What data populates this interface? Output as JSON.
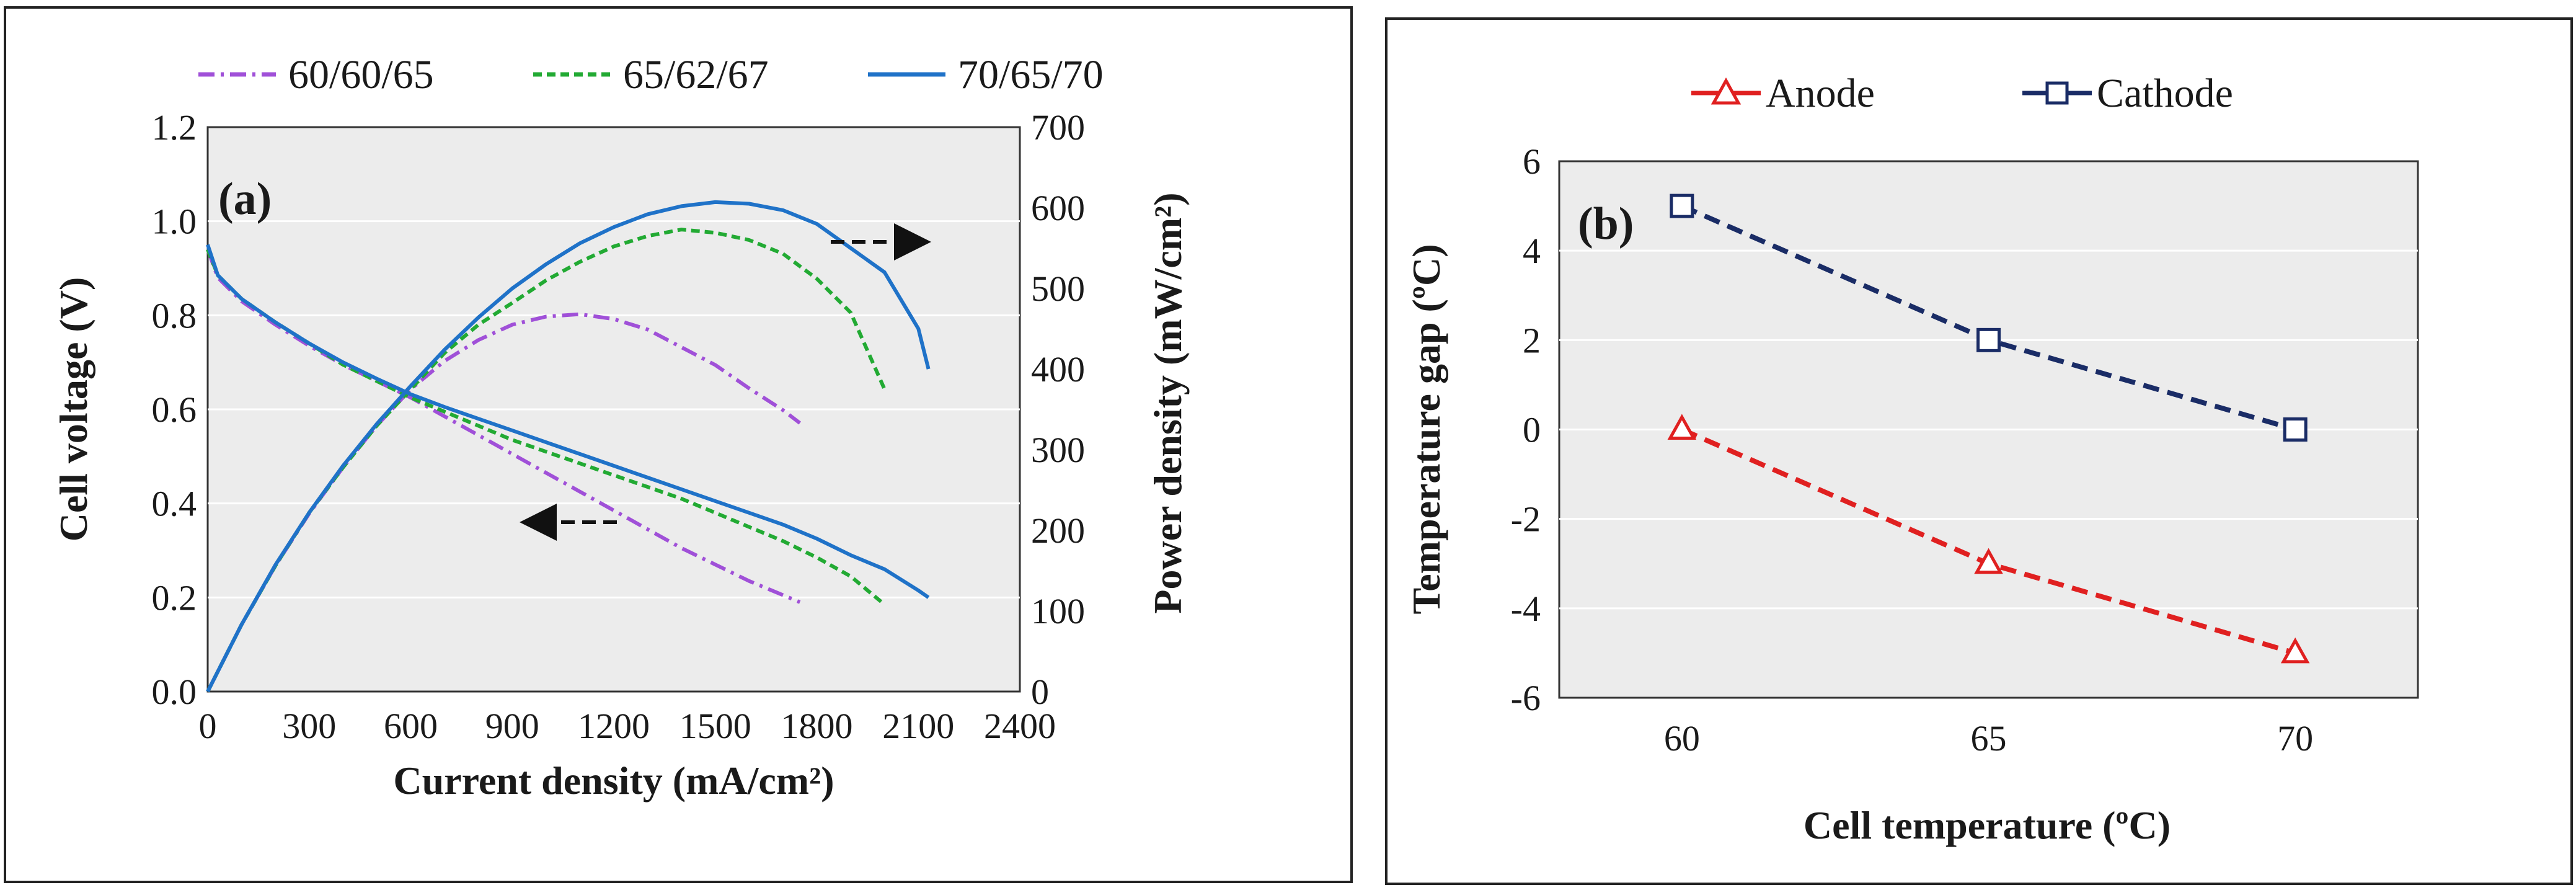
{
  "chart_data": [
    {
      "type": "line",
      "panel_label": "(a)",
      "xlabel": "Current density (mA/cm²)",
      "ylabel": "Cell voltage (V)",
      "y2label": "Power density (mW/cm²)",
      "xlim": [
        0,
        2400
      ],
      "ylim": [
        0,
        1.2
      ],
      "y2lim": [
        0,
        700
      ],
      "x_ticks": [
        "0",
        "300",
        "600",
        "900",
        "1200",
        "1500",
        "1800",
        "2100",
        "2400"
      ],
      "y_ticks": [
        "0.0",
        "0.2",
        "0.4",
        "0.6",
        "0.8",
        "1.0",
        "1.2"
      ],
      "y2_ticks": [
        "0",
        "100",
        "200",
        "300",
        "400",
        "500",
        "600",
        "700"
      ],
      "legend_position": "top",
      "series": [
        {
          "name": "60/60/65",
          "color": "#a050d8",
          "style": "dashdot",
          "voltage": [
            [
              0,
              0.94
            ],
            [
              30,
              0.88
            ],
            [
              100,
              0.83
            ],
            [
              200,
              0.78
            ],
            [
              300,
              0.735
            ],
            [
              400,
              0.695
            ],
            [
              500,
              0.66
            ],
            [
              600,
              0.625
            ],
            [
              700,
              0.585
            ],
            [
              800,
              0.545
            ],
            [
              900,
              0.505
            ],
            [
              1000,
              0.465
            ],
            [
              1100,
              0.425
            ],
            [
              1200,
              0.385
            ],
            [
              1300,
              0.345
            ],
            [
              1400,
              0.305
            ],
            [
              1500,
              0.27
            ],
            [
              1600,
              0.235
            ],
            [
              1700,
              0.205
            ],
            [
              1750,
              0.19
            ]
          ],
          "power": [
            [
              0,
              0
            ],
            [
              100,
              83
            ],
            [
              200,
              156
            ],
            [
              300,
              221
            ],
            [
              400,
              278
            ],
            [
              500,
              330
            ],
            [
              600,
              375
            ],
            [
              700,
              410
            ],
            [
              800,
              436
            ],
            [
              900,
              455
            ],
            [
              1000,
              465
            ],
            [
              1100,
              468
            ],
            [
              1200,
              462
            ],
            [
              1300,
              449
            ],
            [
              1400,
              427
            ],
            [
              1500,
              405
            ],
            [
              1600,
              376
            ],
            [
              1700,
              349
            ],
            [
              1750,
              333
            ]
          ]
        },
        {
          "name": "65/62/67",
          "color": "#22aa33",
          "style": "dashed",
          "voltage": [
            [
              0,
              0.94
            ],
            [
              30,
              0.885
            ],
            [
              100,
              0.835
            ],
            [
              200,
              0.785
            ],
            [
              300,
              0.74
            ],
            [
              400,
              0.695
            ],
            [
              500,
              0.66
            ],
            [
              600,
              0.625
            ],
            [
              700,
              0.595
            ],
            [
              800,
              0.565
            ],
            [
              900,
              0.535
            ],
            [
              1000,
              0.51
            ],
            [
              1100,
              0.485
            ],
            [
              1200,
              0.46
            ],
            [
              1300,
              0.435
            ],
            [
              1400,
              0.41
            ],
            [
              1500,
              0.38
            ],
            [
              1600,
              0.35
            ],
            [
              1700,
              0.32
            ],
            [
              1800,
              0.285
            ],
            [
              1900,
              0.245
            ],
            [
              2000,
              0.185
            ]
          ],
          "power": [
            [
              0,
              0
            ],
            [
              100,
              83
            ],
            [
              200,
              156
            ],
            [
              300,
              222
            ],
            [
              400,
              278
            ],
            [
              500,
              330
            ],
            [
              600,
              375
            ],
            [
              700,
              420
            ],
            [
              800,
              455
            ],
            [
              900,
              482
            ],
            [
              1000,
              510
            ],
            [
              1100,
              533
            ],
            [
              1200,
              552
            ],
            [
              1300,
              565
            ],
            [
              1400,
              573
            ],
            [
              1500,
              569
            ],
            [
              1600,
              560
            ],
            [
              1700,
              543
            ],
            [
              1800,
              512
            ],
            [
              1900,
              470
            ],
            [
              2000,
              375
            ]
          ]
        },
        {
          "name": "70/65/70",
          "color": "#1f72c8",
          "style": "solid",
          "voltage": [
            [
              0,
              0.95
            ],
            [
              30,
              0.885
            ],
            [
              100,
              0.835
            ],
            [
              200,
              0.785
            ],
            [
              300,
              0.74
            ],
            [
              400,
              0.7
            ],
            [
              500,
              0.665
            ],
            [
              600,
              0.632
            ],
            [
              700,
              0.605
            ],
            [
              800,
              0.58
            ],
            [
              900,
              0.555
            ],
            [
              1000,
              0.53
            ],
            [
              1100,
              0.505
            ],
            [
              1200,
              0.48
            ],
            [
              1300,
              0.455
            ],
            [
              1400,
              0.43
            ],
            [
              1500,
              0.405
            ],
            [
              1600,
              0.38
            ],
            [
              1700,
              0.355
            ],
            [
              1800,
              0.325
            ],
            [
              1900,
              0.29
            ],
            [
              2000,
              0.26
            ],
            [
              2100,
              0.215
            ],
            [
              2130,
              0.2
            ]
          ],
          "power": [
            [
              0,
              0
            ],
            [
              100,
              83
            ],
            [
              200,
              157
            ],
            [
              300,
              222
            ],
            [
              400,
              280
            ],
            [
              500,
              332
            ],
            [
              600,
              379
            ],
            [
              700,
              424
            ],
            [
              800,
              464
            ],
            [
              900,
              500
            ],
            [
              1000,
              530
            ],
            [
              1100,
              556
            ],
            [
              1200,
              576
            ],
            [
              1300,
              592
            ],
            [
              1400,
              602
            ],
            [
              1500,
              607
            ],
            [
              1600,
              605
            ],
            [
              1700,
              597
            ],
            [
              1800,
              580
            ],
            [
              1900,
              550
            ],
            [
              2000,
              520
            ],
            [
              2100,
              450
            ],
            [
              2130,
              400
            ]
          ]
        }
      ],
      "annotations": [
        {
          "type": "arrow",
          "direction": "right",
          "meaning": "power density axis",
          "at": [
            1880,
            0.96
          ]
        },
        {
          "type": "arrow",
          "direction": "left",
          "meaning": "cell voltage axis",
          "at": [
            1000,
            0.34
          ]
        }
      ]
    },
    {
      "type": "line",
      "panel_label": "(b)",
      "xlabel": "Cell temperature (ºC)",
      "ylabel": "Temperature gap (ºC)",
      "xlim": [
        58,
        72
      ],
      "ylim": [
        -6,
        6
      ],
      "x_ticks": [
        "60",
        "65",
        "70"
      ],
      "y_ticks": [
        "-6",
        "-4",
        "-2",
        "0",
        "2",
        "4",
        "6"
      ],
      "legend_position": "top",
      "series": [
        {
          "name": "Anode",
          "color": "#e02020",
          "marker": "triangle",
          "style": "dashed",
          "x": [
            60,
            65,
            70
          ],
          "values": [
            0,
            -3,
            -5
          ]
        },
        {
          "name": "Cathode",
          "color": "#1a2c66",
          "marker": "square",
          "style": "dashed",
          "x": [
            60,
            65,
            70
          ],
          "values": [
            5,
            2,
            0
          ]
        }
      ]
    }
  ]
}
